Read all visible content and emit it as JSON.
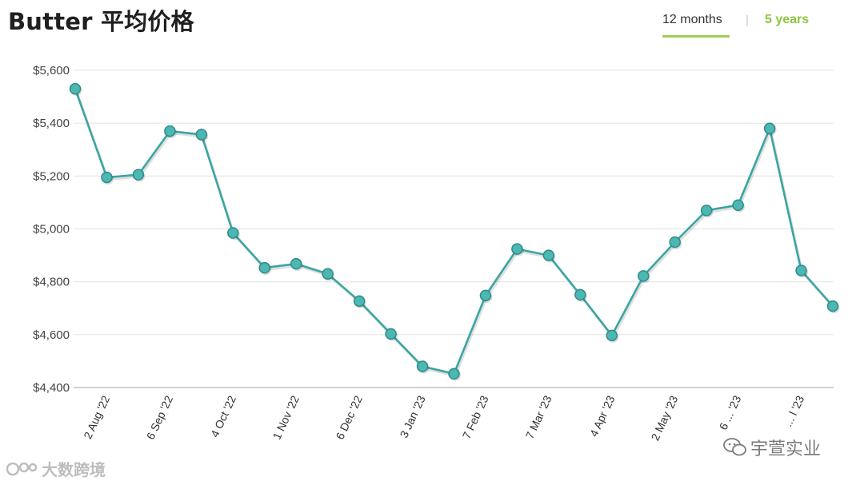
{
  "title": "Butter 平均价格",
  "tabs": {
    "active": "12 months",
    "separator": "|",
    "other": "5 years"
  },
  "colors": {
    "line": "#3aa5a3",
    "marker": "#4cb7b3",
    "marker_stroke": "#2e8c89",
    "accent_green": "#8cc63f"
  },
  "chart_data": {
    "type": "line",
    "title": "Butter 平均价格",
    "xlabel": "",
    "ylabel": "",
    "ylim": [
      4400,
      5600
    ],
    "yticks": [
      4400,
      4600,
      4800,
      5000,
      5200,
      5400,
      5600
    ],
    "ytick_labels": [
      "$4,400",
      "$4,600",
      "$4,800",
      "$5,000",
      "$5,200",
      "$5,400",
      "$5,600"
    ],
    "xtick_labels": [
      "2 Aug '22",
      "6 Sep '22",
      "4 Oct '22",
      "1 Nov '22",
      "6 Dec '22",
      "3 Jan '23",
      "7 Feb '23",
      "7 Mar '23",
      "4 Apr '23",
      "2 May '23",
      "6 ... '23",
      "... l '23"
    ],
    "xtick_positions": [
      1,
      3,
      5,
      7,
      9,
      11,
      13,
      15,
      17,
      19,
      21,
      23
    ],
    "grid": true,
    "series": [
      {
        "values": [
          5530,
          5195,
          5205,
          5370,
          5357,
          4985,
          4853,
          4868,
          4830,
          4727,
          4603,
          4480,
          4452,
          4748,
          4924,
          4900,
          4751,
          4597,
          4822,
          4950,
          5070,
          5090,
          5380,
          4843,
          4708
        ]
      }
    ]
  },
  "watermarks": {
    "left": "大数跨境",
    "right": "宇萱实业"
  }
}
